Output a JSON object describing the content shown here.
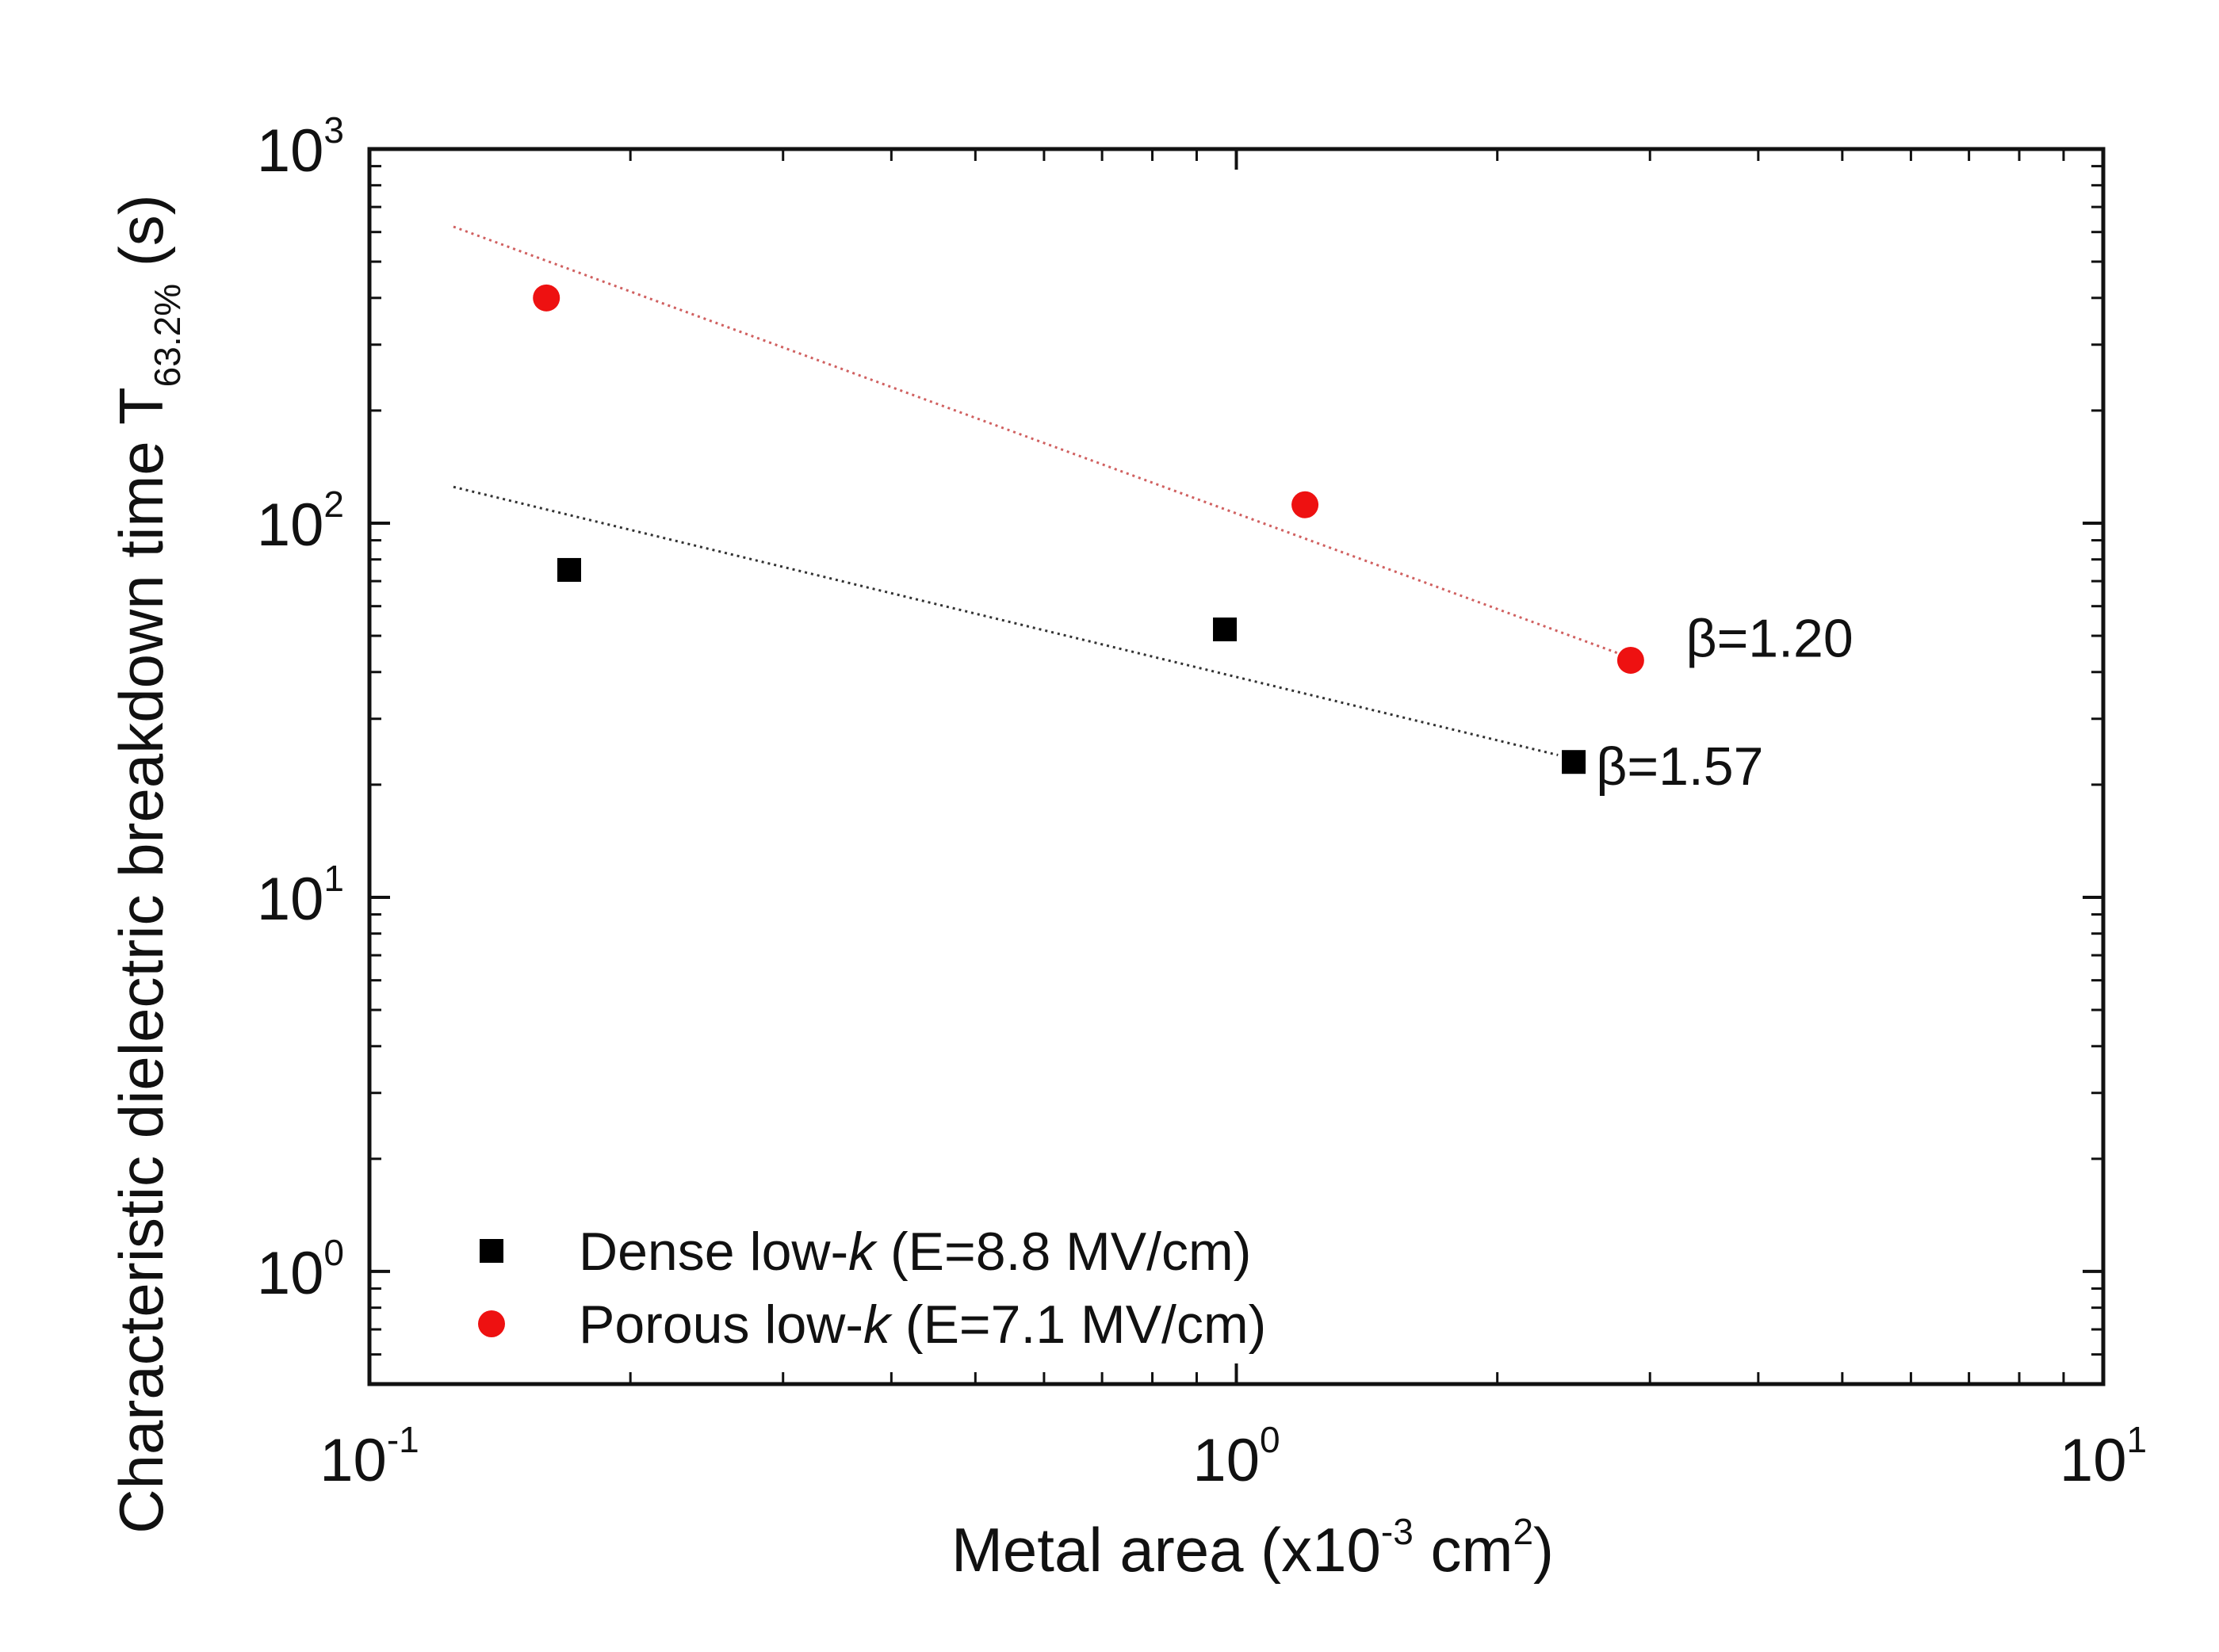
{
  "chart_data": {
    "type": "scatter",
    "x_scale": "log",
    "y_scale": "log",
    "xlim": [
      0.1,
      10
    ],
    "ylim": [
      0.5,
      1000
    ],
    "x_ticks": [
      {
        "value": 0.1,
        "base": "10",
        "exp": "-1"
      },
      {
        "value": 1,
        "base": "10",
        "exp": "0"
      },
      {
        "value": 10,
        "base": "10",
        "exp": "1"
      }
    ],
    "y_ticks": [
      {
        "value": 1,
        "base": "10",
        "exp": "0"
      },
      {
        "value": 10,
        "base": "10",
        "exp": "1"
      },
      {
        "value": 100,
        "base": "10",
        "exp": "2"
      },
      {
        "value": 1000,
        "base": "10",
        "exp": "3"
      }
    ],
    "xlabel": {
      "pre": "Metal area (x10",
      "sup1": "-3",
      "mid": " cm",
      "sup2": "2",
      "post": ")"
    },
    "ylabel": {
      "pre": "Characteristic dielectric breakdown time T",
      "sub": "63.2%",
      "post": " (s)"
    },
    "legend_position": "bottom-left",
    "series": [
      {
        "name": "Dense low-k",
        "legend_prefix": "Dense low-",
        "legend_k": "k",
        "legend_suffix": "  (E=8.8 MV/cm)",
        "marker": "square",
        "color": "#000000",
        "points": [
          [
            0.17,
            75
          ],
          [
            0.97,
            52
          ],
          [
            2.45,
            23
          ]
        ],
        "fit": {
          "x": [
            0.125,
            2.35
          ],
          "y": [
            125,
            24
          ],
          "color": "#333333"
        },
        "annotation": "β=1.57",
        "annotation_at": [
          2.6,
          20
        ]
      },
      {
        "name": "Porous low-k",
        "legend_prefix": "Porous low-",
        "legend_k": "k",
        "legend_suffix": " (E=7.1 MV/cm)",
        "marker": "circle",
        "color": "#ee1111",
        "points": [
          [
            0.16,
            400
          ],
          [
            1.2,
            112
          ],
          [
            2.85,
            43
          ]
        ],
        "fit": {
          "x": [
            0.125,
            2.75
          ],
          "y": [
            620,
            45
          ],
          "color": "#d06060"
        },
        "annotation": "β=1.20",
        "annotation_at": [
          3.3,
          44
        ]
      }
    ]
  }
}
